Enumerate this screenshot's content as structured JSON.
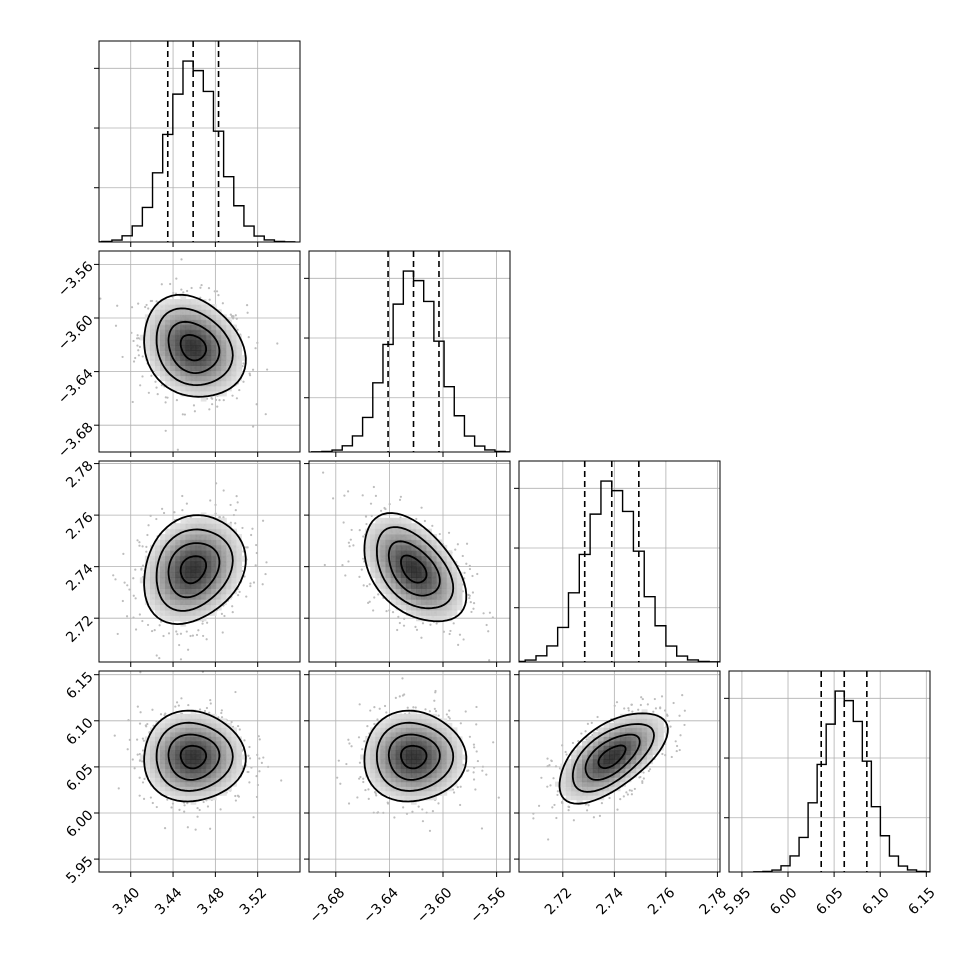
{
  "chart_data": {
    "type": "corner",
    "parameters": [
      {
        "mean": 3.459,
        "std": 0.024,
        "lim": [
          3.37,
          3.56
        ],
        "ticks": [
          "3.40",
          "3.44",
          "3.48",
          "3.52"
        ],
        "quantiles": [
          3.435,
          3.459,
          3.483
        ]
      },
      {
        "mean": -3.622,
        "std": 0.019,
        "lim": [
          -3.7,
          -3.55
        ],
        "ticks": [
          "−3.68",
          "−3.64",
          "−3.60",
          "−3.56"
        ],
        "quantiles": [
          -3.641,
          -3.622,
          -3.603
        ]
      },
      {
        "mean": 2.739,
        "std": 0.0105,
        "lim": [
          2.703,
          2.781
        ],
        "ticks": [
          "2.72",
          "2.74",
          "2.76",
          "2.78"
        ],
        "quantiles": [
          2.7285,
          2.739,
          2.7495
        ]
      },
      {
        "mean": 6.061,
        "std": 0.0245,
        "lim": [
          5.936,
          6.154
        ],
        "ticks": [
          "5.95",
          "6.00",
          "6.05",
          "6.10",
          "6.15"
        ],
        "quantiles": [
          6.036,
          6.061,
          6.0855
        ]
      }
    ],
    "correlations": {
      "1-0": -0.2,
      "2-0": 0.2,
      "2-1": -0.45,
      "3-0": 0.0,
      "3-1": 0.0,
      "3-2": 0.6
    },
    "diagonal_hist_ylim_frac": [
      0,
      1.05
    ],
    "contour_levels_sigma": [
      0.5,
      1.0,
      1.5,
      2.0
    ],
    "quantiles_shown": [
      0.16,
      0.5,
      0.84
    ],
    "grid": true,
    "xlabel": "",
    "ylabel": "",
    "title": ""
  }
}
